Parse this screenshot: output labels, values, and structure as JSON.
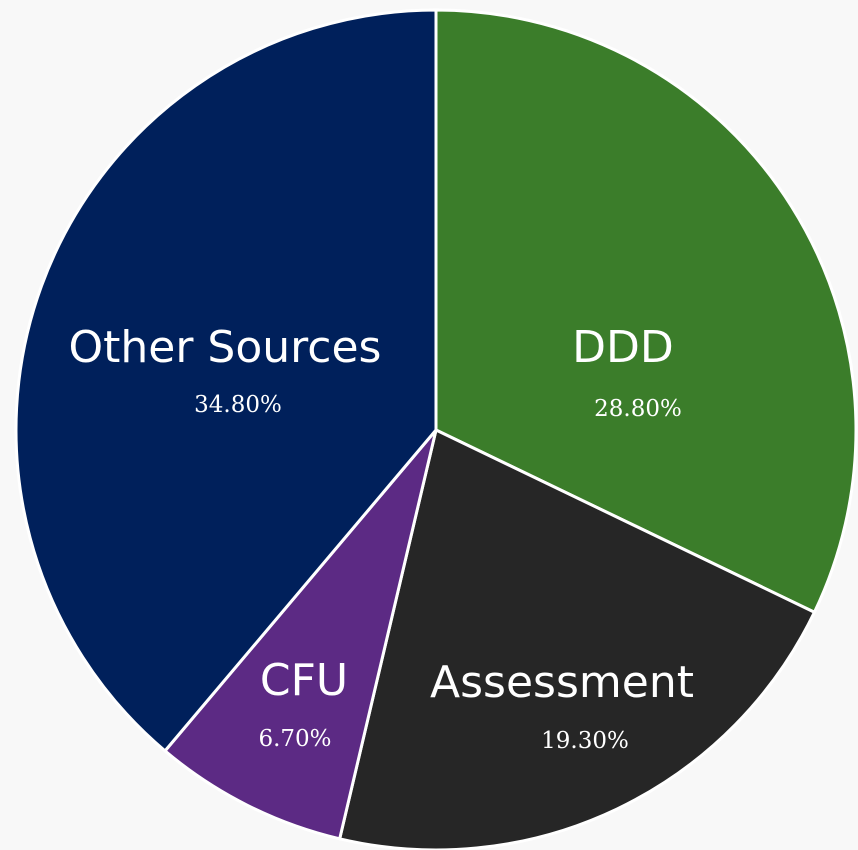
{
  "chart_data": {
    "type": "pie",
    "categories": [
      "DDD",
      "Assessment",
      "CFU",
      "Other Sources"
    ],
    "values": [
      28.8,
      19.3,
      6.7,
      34.8
    ],
    "value_labels": [
      "28.80%",
      "19.30%",
      "6.70%",
      "34.80%"
    ],
    "colors": [
      "#3b7d2a",
      "#262626",
      "#5c2a84",
      "#00205b"
    ]
  }
}
